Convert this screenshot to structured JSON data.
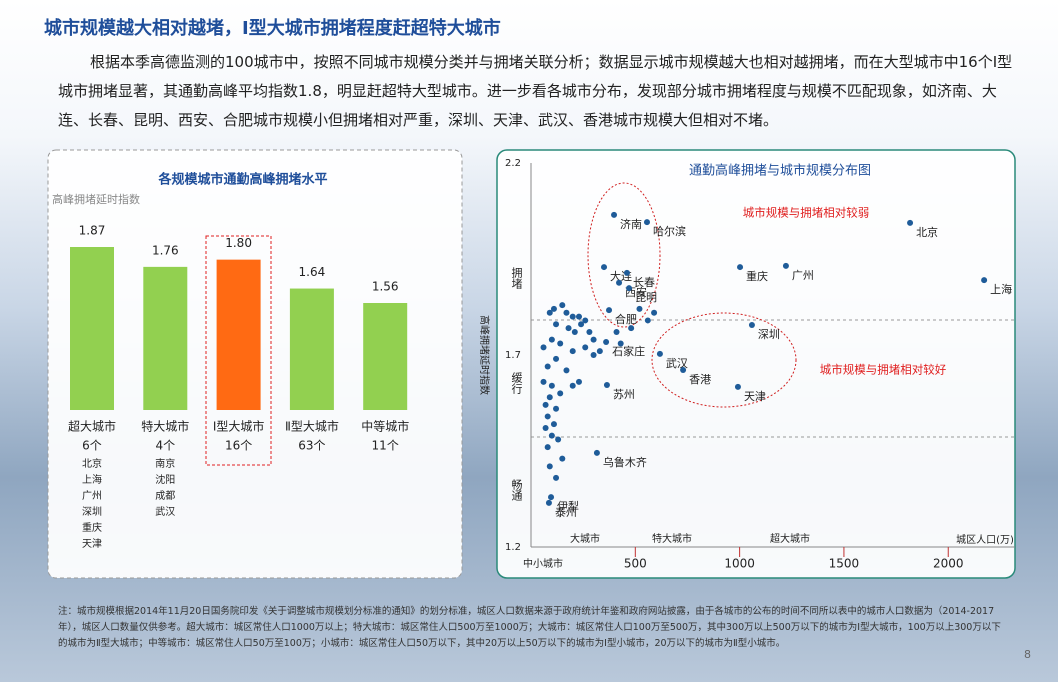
{
  "header": {
    "title": "城市规模越大相对越堵，Ⅰ型大城市拥堵程度赶超特大城市",
    "paragraph": "根据本季高德监测的100城市中，按照不同城市规模分类并与拥堵关联分析；数据显示城市规模越大也相对越拥堵，而在大型城市中16个Ⅰ型城市拥堵显著，其通勤高峰平均指数1.8，明显赶超特大型城市。进一步看各城市分布，发现部分城市拥堵程度与规模不匹配现象，如济南、大连、长春、昆明、西安、合肥城市规模小但拥堵相对严重，深圳、天津、武汉、香港城市规模大但相对不堵。"
  },
  "chart_data": [
    {
      "type": "bar",
      "title": "各规模城市通勤高峰拥堵水平",
      "y_label": "高峰拥堵延时指数",
      "categories": [
        "超大城市",
        "特大城市",
        "Ⅰ型大城市",
        "Ⅱ型大城市",
        "中等城市"
      ],
      "counts": [
        "6个",
        "4个",
        "16个",
        "63个",
        "11个"
      ],
      "cities": [
        [
          "北京",
          "上海",
          "广州",
          "深圳",
          "重庆",
          "天津"
        ],
        [
          "南京",
          "沈阳",
          "成都",
          "武汉"
        ],
        [],
        [],
        []
      ],
      "values": [
        1.87,
        1.76,
        1.8,
        1.64,
        1.56
      ],
      "value_labels": [
        "1.87",
        "1.76",
        "1.80",
        "1.64",
        "1.56"
      ],
      "colors": [
        "#92d050",
        "#92d050",
        "#ff6a13",
        "#92d050",
        "#92d050"
      ]
    },
    {
      "type": "scatter",
      "title": "通勤高峰拥堵与城市规模分布图",
      "y_label": "高峰拥堵延时指数",
      "x_label": "城区人口(万)",
      "xlim": [
        0,
        2320
      ],
      "ylim": [
        1.2,
        2.2
      ],
      "xticks": [
        500,
        1000,
        1500,
        2000
      ],
      "yticks": [
        1.2,
        1.7,
        2.2
      ],
      "size_categories": [
        "中小城市",
        "大城市",
        "特大城市",
        "超大城市"
      ],
      "zone_labels": [
        "拥堵",
        "缓行",
        "畅通"
      ],
      "annotations": [
        "城市规模与拥堵相对较弱",
        "城市规模与拥堵相对较好"
      ],
      "series": [
        {
          "color": "#1f5c99",
          "x": [
            1817,
            2172,
            1222,
            1002,
            1059,
            992,
            618,
            729,
            398,
            556,
            350,
            460,
            422,
            470,
            374,
            360,
            364,
            316,
            96,
            86,
            90,
            110,
            150,
            170,
            200,
            230,
            260,
            120,
            180,
            210,
            240,
            280,
            300,
            260,
            100,
            140,
            60,
            200,
            300,
            330,
            120,
            80,
            170,
            60,
            100,
            140,
            200,
            230,
            90,
            70,
            120,
            80,
            110,
            70,
            100,
            130,
            80,
            150,
            120,
            90,
            520,
            590,
            560,
            480,
            430,
            410
          ],
          "y": [
            2.044,
            1.895,
            1.932,
            1.929,
            1.778,
            1.617,
            1.703,
            1.661,
            2.065,
            2.046,
            1.929,
            1.914,
            1.888,
            1.874,
            1.817,
            1.734,
            1.622,
            1.445,
            1.33,
            1.315,
            1.81,
            1.82,
            1.83,
            1.81,
            1.8,
            1.8,
            1.79,
            1.78,
            1.77,
            1.76,
            1.78,
            1.76,
            1.74,
            1.72,
            1.74,
            1.73,
            1.72,
            1.71,
            1.7,
            1.71,
            1.69,
            1.67,
            1.66,
            1.63,
            1.62,
            1.6,
            1.62,
            1.63,
            1.59,
            1.57,
            1.56,
            1.54,
            1.52,
            1.51,
            1.49,
            1.48,
            1.46,
            1.43,
            1.38,
            1.41,
            1.82,
            1.81,
            1.79,
            1.77,
            1.73,
            1.76
          ],
          "labels": [
            "北京",
            "上海",
            "广州",
            "重庆",
            "深圳",
            "天津",
            "武汉",
            "香港",
            "济南",
            "哈尔滨",
            "大连",
            "长春",
            "西安",
            "昆明",
            "合肥",
            "石家庄",
            "苏州",
            "乌鲁木齐",
            "伊犁",
            "泰州",
            null,
            null,
            null,
            null,
            null,
            null,
            null,
            null,
            null,
            null,
            null,
            null,
            null,
            null,
            null,
            null,
            null,
            null,
            null,
            null,
            null,
            null,
            null,
            null,
            null,
            null,
            null,
            null,
            null,
            null,
            null,
            null,
            null,
            null,
            null,
            null,
            null,
            null,
            null,
            null,
            null,
            null,
            null,
            null,
            null,
            null
          ]
        }
      ]
    }
  ],
  "footnote": "注：城市规模根据2014年11月20日国务院印发《关于调整城市规模划分标准的通知》的划分标准，城区人口数据来源于政府统计年鉴和政府网站披露，由于各城市的公布的时间不同所以表中的城市人口数据为（2014-2017年），城区人口数量仅供参考。超大城市：城区常住人口1000万以上；特大城市：城区常住人口500万至1000万；大城市：城区常住人口100万至500万，其中300万以上500万以下的城市为Ⅰ型大城市，100万以上300万以下的城市为Ⅱ型大城市；中等城市：城区常住人口50万至100万；小城市：城区常住人口50万以下，其中20万以上50万以下的城市为Ⅰ型小城市，20万以下的城市为Ⅱ型小城市。",
  "page_number": "8"
}
